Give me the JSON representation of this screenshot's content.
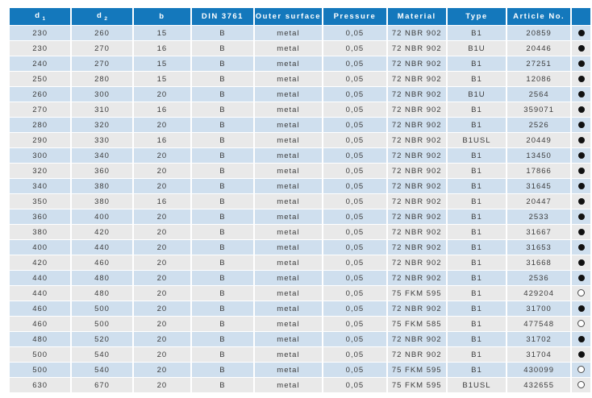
{
  "colors": {
    "header_bg": "#1478bc",
    "header_text": "#ffffff",
    "row_blue": "#cfdfee",
    "row_gray": "#e9e9e9",
    "text": "#3c3c3c",
    "dot_filled": "#111111",
    "dot_open_border": "#4a4a4a"
  },
  "table": {
    "columns": [
      {
        "key": "d1",
        "label": "d",
        "sub": "1"
      },
      {
        "key": "d2",
        "label": "d",
        "sub": "2"
      },
      {
        "key": "b",
        "label": "b"
      },
      {
        "key": "din",
        "label": "DIN 3761"
      },
      {
        "key": "outer",
        "label": "Outer surface"
      },
      {
        "key": "pressure",
        "label": "Pressure"
      },
      {
        "key": "material",
        "label": "Material"
      },
      {
        "key": "type",
        "label": "Type"
      },
      {
        "key": "article",
        "label": "Article No."
      },
      {
        "key": "dot",
        "label": ""
      }
    ],
    "rows": [
      {
        "d1": "230",
        "d2": "260",
        "b": "15",
        "din": "B",
        "outer": "metal",
        "pressure": "0,05",
        "material": "72 NBR 902",
        "type": "B1",
        "article": "20859",
        "dot": "filled"
      },
      {
        "d1": "230",
        "d2": "270",
        "b": "16",
        "din": "B",
        "outer": "metal",
        "pressure": "0,05",
        "material": "72 NBR 902",
        "type": "B1U",
        "article": "20446",
        "dot": "filled"
      },
      {
        "d1": "240",
        "d2": "270",
        "b": "15",
        "din": "B",
        "outer": "metal",
        "pressure": "0,05",
        "material": "72 NBR 902",
        "type": "B1",
        "article": "27251",
        "dot": "filled"
      },
      {
        "d1": "250",
        "d2": "280",
        "b": "15",
        "din": "B",
        "outer": "metal",
        "pressure": "0,05",
        "material": "72 NBR 902",
        "type": "B1",
        "article": "12086",
        "dot": "filled"
      },
      {
        "d1": "260",
        "d2": "300",
        "b": "20",
        "din": "B",
        "outer": "metal",
        "pressure": "0,05",
        "material": "72 NBR 902",
        "type": "B1U",
        "article": "2564",
        "dot": "filled"
      },
      {
        "d1": "270",
        "d2": "310",
        "b": "16",
        "din": "B",
        "outer": "metal",
        "pressure": "0,05",
        "material": "72 NBR 902",
        "type": "B1",
        "article": "359071",
        "dot": "filled"
      },
      {
        "d1": "280",
        "d2": "320",
        "b": "20",
        "din": "B",
        "outer": "metal",
        "pressure": "0,05",
        "material": "72 NBR 902",
        "type": "B1",
        "article": "2526",
        "dot": "filled"
      },
      {
        "d1": "290",
        "d2": "330",
        "b": "16",
        "din": "B",
        "outer": "metal",
        "pressure": "0,05",
        "material": "72 NBR 902",
        "type": "B1USL",
        "article": "20449",
        "dot": "filled"
      },
      {
        "d1": "300",
        "d2": "340",
        "b": "20",
        "din": "B",
        "outer": "metal",
        "pressure": "0,05",
        "material": "72 NBR 902",
        "type": "B1",
        "article": "13450",
        "dot": "filled"
      },
      {
        "d1": "320",
        "d2": "360",
        "b": "20",
        "din": "B",
        "outer": "metal",
        "pressure": "0,05",
        "material": "72 NBR 902",
        "type": "B1",
        "article": "17866",
        "dot": "filled"
      },
      {
        "d1": "340",
        "d2": "380",
        "b": "20",
        "din": "B",
        "outer": "metal",
        "pressure": "0,05",
        "material": "72 NBR 902",
        "type": "B1",
        "article": "31645",
        "dot": "filled"
      },
      {
        "d1": "350",
        "d2": "380",
        "b": "16",
        "din": "B",
        "outer": "metal",
        "pressure": "0,05",
        "material": "72 NBR 902",
        "type": "B1",
        "article": "20447",
        "dot": "filled"
      },
      {
        "d1": "360",
        "d2": "400",
        "b": "20",
        "din": "B",
        "outer": "metal",
        "pressure": "0,05",
        "material": "72 NBR 902",
        "type": "B1",
        "article": "2533",
        "dot": "filled"
      },
      {
        "d1": "380",
        "d2": "420",
        "b": "20",
        "din": "B",
        "outer": "metal",
        "pressure": "0,05",
        "material": "72 NBR 902",
        "type": "B1",
        "article": "31667",
        "dot": "filled"
      },
      {
        "d1": "400",
        "d2": "440",
        "b": "20",
        "din": "B",
        "outer": "metal",
        "pressure": "0,05",
        "material": "72 NBR 902",
        "type": "B1",
        "article": "31653",
        "dot": "filled"
      },
      {
        "d1": "420",
        "d2": "460",
        "b": "20",
        "din": "B",
        "outer": "metal",
        "pressure": "0,05",
        "material": "72 NBR 902",
        "type": "B1",
        "article": "31668",
        "dot": "filled"
      },
      {
        "d1": "440",
        "d2": "480",
        "b": "20",
        "din": "B",
        "outer": "metal",
        "pressure": "0,05",
        "material": "72 NBR 902",
        "type": "B1",
        "article": "2536",
        "dot": "filled"
      },
      {
        "d1": "440",
        "d2": "480",
        "b": "20",
        "din": "B",
        "outer": "metal",
        "pressure": "0,05",
        "material": "75 FKM 595",
        "type": "B1",
        "article": "429204",
        "dot": "open"
      },
      {
        "d1": "460",
        "d2": "500",
        "b": "20",
        "din": "B",
        "outer": "metal",
        "pressure": "0,05",
        "material": "72 NBR 902",
        "type": "B1",
        "article": "31700",
        "dot": "filled"
      },
      {
        "d1": "460",
        "d2": "500",
        "b": "20",
        "din": "B",
        "outer": "metal",
        "pressure": "0,05",
        "material": "75 FKM 585",
        "type": "B1",
        "article": "477548",
        "dot": "open"
      },
      {
        "d1": "480",
        "d2": "520",
        "b": "20",
        "din": "B",
        "outer": "metal",
        "pressure": "0,05",
        "material": "72 NBR 902",
        "type": "B1",
        "article": "31702",
        "dot": "filled"
      },
      {
        "d1": "500",
        "d2": "540",
        "b": "20",
        "din": "B",
        "outer": "metal",
        "pressure": "0,05",
        "material": "72 NBR 902",
        "type": "B1",
        "article": "31704",
        "dot": "filled"
      },
      {
        "d1": "500",
        "d2": "540",
        "b": "20",
        "din": "B",
        "outer": "metal",
        "pressure": "0,05",
        "material": "75 FKM 595",
        "type": "B1",
        "article": "430099",
        "dot": "open"
      },
      {
        "d1": "630",
        "d2": "670",
        "b": "20",
        "din": "B",
        "outer": "metal",
        "pressure": "0,05",
        "material": "75 FKM 595",
        "type": "B1USL",
        "article": "432655",
        "dot": "open"
      }
    ]
  }
}
